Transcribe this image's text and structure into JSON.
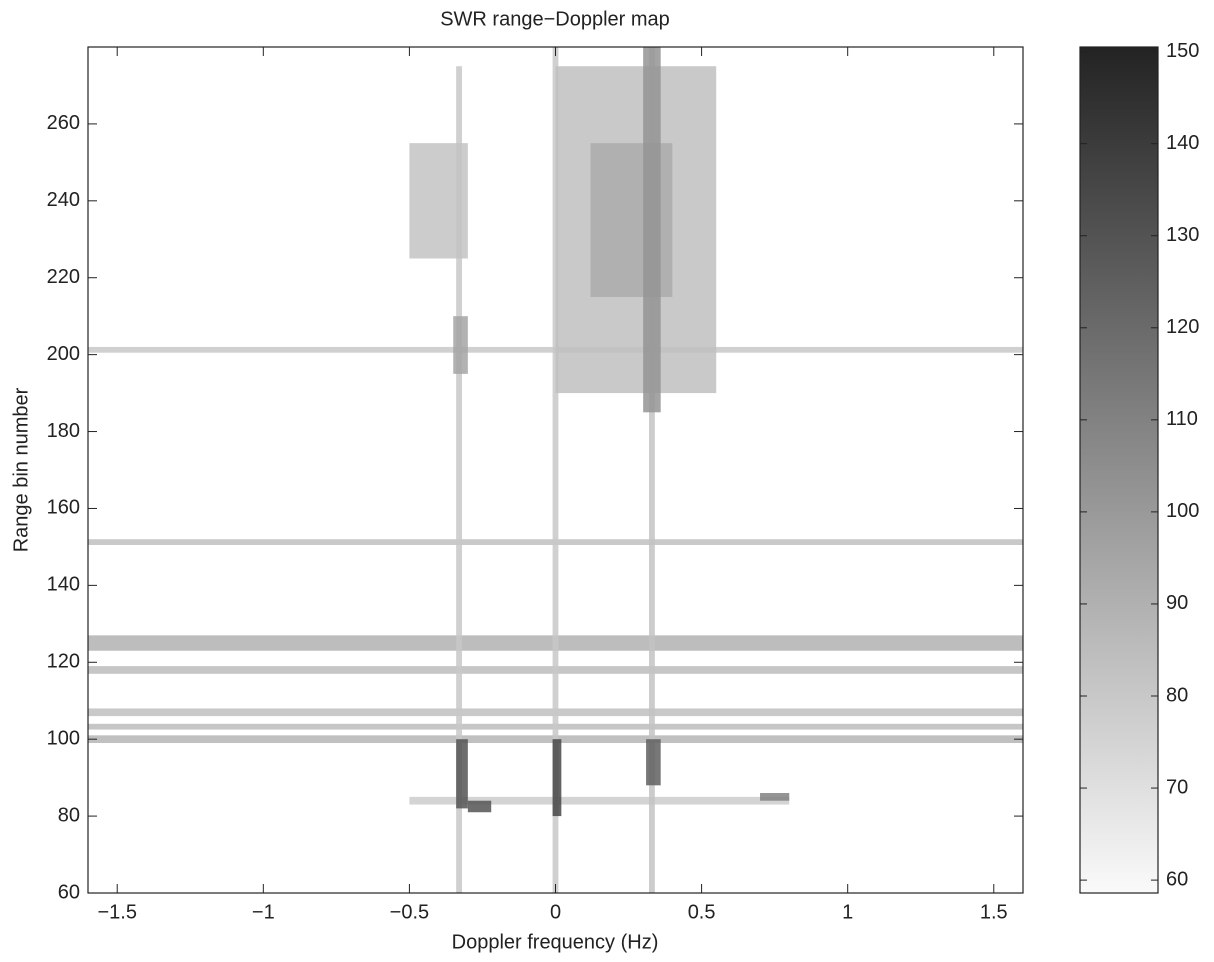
{
  "chart_data": {
    "type": "heatmap",
    "title": "SWR range−Doppler map",
    "xlabel": "Doppler frequency (Hz)",
    "ylabel": "Range bin number",
    "xlim": [
      -1.6,
      1.6
    ],
    "ylim": [
      60,
      280
    ],
    "xticks": [
      {
        "value": -1.5,
        "label": "−1.5"
      },
      {
        "value": -1,
        "label": "−1"
      },
      {
        "value": -0.5,
        "label": "−0.5"
      },
      0,
      0.5,
      1,
      1.5
    ],
    "yticks": [
      60,
      80,
      100,
      120,
      140,
      160,
      180,
      200,
      220,
      240,
      260
    ],
    "clim": [
      58.6,
      150.5
    ],
    "cticks": [
      60,
      70,
      80,
      90,
      100,
      110,
      120,
      130,
      140,
      150
    ],
    "cells": [
      {
        "x0": -1.6,
        "x1": 1.6,
        "y0": 200.5,
        "y1": 202,
        "value": 80
      },
      {
        "x0": -1.6,
        "x1": 1.6,
        "y0": 150.5,
        "y1": 152,
        "value": 84
      },
      {
        "x0": -1.6,
        "x1": 1.6,
        "y0": 123,
        "y1": 127,
        "value": 90
      },
      {
        "x0": -1.6,
        "x1": 1.6,
        "y0": 117,
        "y1": 119,
        "value": 85
      },
      {
        "x0": -1.6,
        "x1": 1.6,
        "y0": 106,
        "y1": 108,
        "value": 84
      },
      {
        "x0": -1.6,
        "x1": 1.6,
        "y0": 102.5,
        "y1": 104,
        "value": 85
      },
      {
        "x0": -1.6,
        "x1": 1.6,
        "y0": 99,
        "y1": 101,
        "value": 88
      },
      {
        "x0": -0.5,
        "x1": 0.8,
        "y0": 83,
        "y1": 85,
        "value": 78
      },
      {
        "x0": -0.34,
        "x1": -0.32,
        "y0": 60,
        "y1": 275,
        "value": 80
      },
      {
        "x0": -0.01,
        "x1": 0.01,
        "y0": 60,
        "y1": 280,
        "value": 80
      },
      {
        "x0": 0.32,
        "x1": 0.34,
        "y0": 60,
        "y1": 280,
        "value": 82
      },
      {
        "x0": -0.5,
        "x1": -0.3,
        "y0": 225,
        "y1": 255,
        "value": 82
      },
      {
        "x0": 0.0,
        "x1": 0.55,
        "y0": 190,
        "y1": 275,
        "value": 84
      },
      {
        "x0": 0.12,
        "x1": 0.4,
        "y0": 215,
        "y1": 255,
        "value": 92
      },
      {
        "x0": 0.3,
        "x1": 0.36,
        "y0": 185,
        "y1": 280,
        "value": 102
      },
      {
        "x0": -0.35,
        "x1": -0.3,
        "y0": 195,
        "y1": 210,
        "value": 95
      },
      {
        "x0": -0.34,
        "x1": -0.3,
        "y0": 82,
        "y1": 100,
        "value": 130
      },
      {
        "x0": -0.3,
        "x1": -0.22,
        "y0": 81,
        "y1": 84,
        "value": 130
      },
      {
        "x0": -0.01,
        "x1": 0.02,
        "y0": 80,
        "y1": 100,
        "value": 135
      },
      {
        "x0": 0.31,
        "x1": 0.36,
        "y0": 88,
        "y1": 100,
        "value": 125
      },
      {
        "x0": 0.7,
        "x1": 0.8,
        "y0": 84,
        "y1": 86,
        "value": 110
      }
    ]
  }
}
